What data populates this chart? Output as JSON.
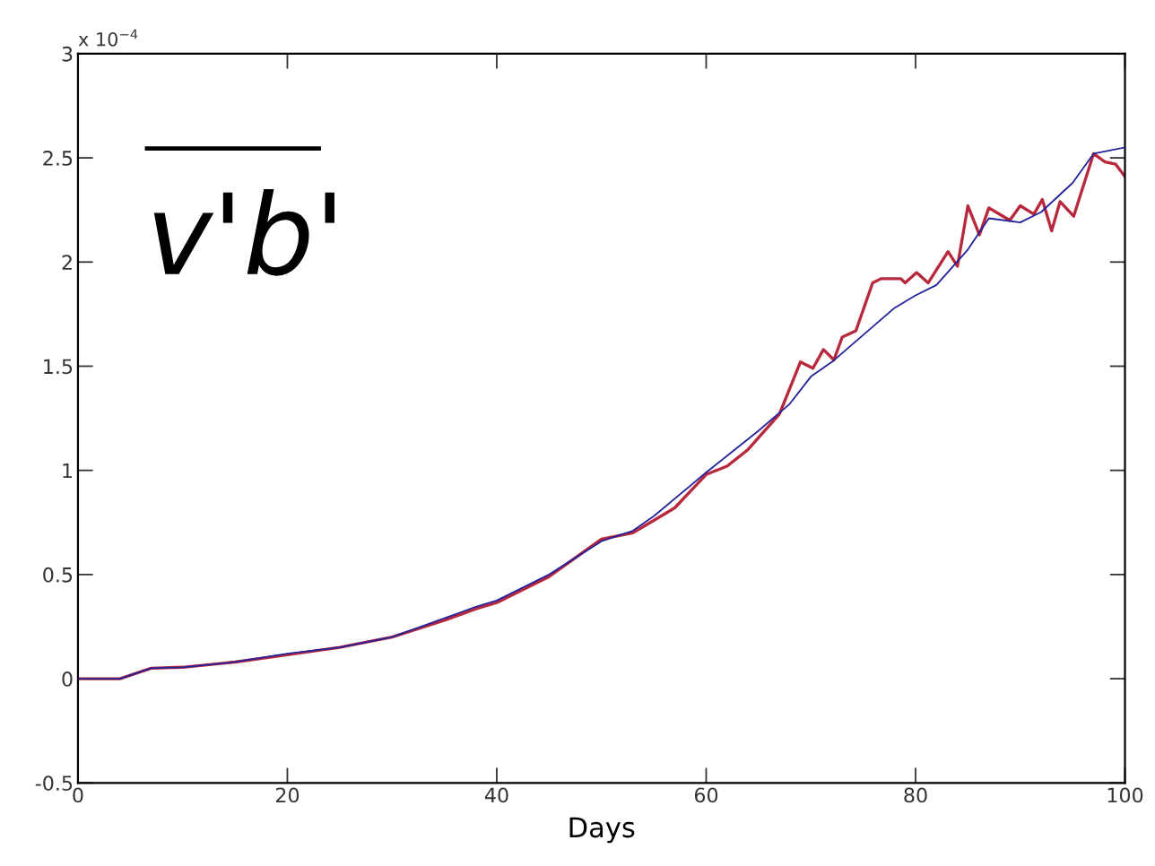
{
  "chart_data": {
    "type": "line",
    "xlabel": "Days",
    "annotations": [
      "v'b'",
      "x 10$^{−4}$"
    ],
    "xlim": [
      0,
      100
    ],
    "ylim": [
      -0.5,
      3
    ],
    "xticks": [
      0,
      20,
      40,
      60,
      80,
      100
    ],
    "yticks": [
      -0.5,
      0,
      0.5,
      1,
      1.5,
      2,
      2.5,
      3
    ],
    "grid": false,
    "marker": "none",
    "line_style": "solid",
    "series": [
      {
        "color": "#22229a",
        "x": [
          0,
          4,
          7,
          10,
          15,
          20,
          25,
          30,
          35,
          38,
          40,
          45,
          50,
          53,
          55,
          60,
          65,
          68,
          70,
          72,
          75,
          78,
          80,
          82,
          85,
          87,
          90,
          92,
          95,
          97,
          100
        ],
        "values": [
          0,
          0,
          0.05,
          0.055,
          0.08,
          0.12,
          0.15,
          0.2,
          0.29,
          0.345,
          0.375,
          0.5,
          0.66,
          0.71,
          0.78,
          0.99,
          1.19,
          1.32,
          1.45,
          1.52,
          1.65,
          1.78,
          1.84,
          1.89,
          2.06,
          2.21,
          2.19,
          2.24,
          2.38,
          2.52,
          2.55
        ]
      },
      {
        "color": "#b8283c",
        "x": [
          0,
          4,
          7,
          10,
          15,
          20,
          25,
          30,
          35,
          38,
          40,
          45,
          50,
          53,
          55,
          57,
          60,
          62,
          64,
          67,
          69,
          70.2,
          71.2,
          72.2,
          73,
          74.3,
          75.9,
          76.7,
          78.6,
          79,
          80.1,
          81.2,
          83.1,
          84,
          85,
          86.1,
          87,
          89,
          90,
          91.3,
          92.1,
          93,
          93.8,
          95.1,
          97,
          98.1,
          99.1,
          100
        ],
        "values": [
          0,
          0,
          0.05,
          0.055,
          0.08,
          0.115,
          0.15,
          0.2,
          0.28,
          0.335,
          0.365,
          0.49,
          0.67,
          0.7,
          0.76,
          0.82,
          0.98,
          1.02,
          1.1,
          1.27,
          1.52,
          1.49,
          1.58,
          1.53,
          1.64,
          1.67,
          1.9,
          1.92,
          1.92,
          1.9,
          1.95,
          1.9,
          2.05,
          1.98,
          2.27,
          2.13,
          2.26,
          2.2,
          2.27,
          2.23,
          2.3,
          2.15,
          2.29,
          2.22,
          2.52,
          2.48,
          2.47,
          2.41
        ]
      }
    ]
  }
}
